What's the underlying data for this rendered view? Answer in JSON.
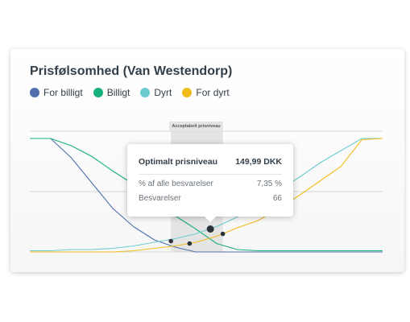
{
  "chart": {
    "title": "Prisfølsomhed (Van Westendorp)",
    "legend": [
      {
        "label": "For billigt",
        "color": "#4f6fae"
      },
      {
        "label": "Billigt",
        "color": "#18b07a"
      },
      {
        "label": "Dyrt",
        "color": "#6ccbd0"
      },
      {
        "label": "For dyrt",
        "color": "#f2bb1c"
      }
    ],
    "range_label": "Acceptabelt prisniveau"
  },
  "tooltip": {
    "heading_label": "Optimalt prisniveau",
    "heading_value": "149,99 DKK",
    "rows": [
      {
        "label": "% af alle besvarelser",
        "value": "7,35 %"
      },
      {
        "label": "Besvarelser",
        "value": "66"
      }
    ]
  },
  "chart_data": {
    "type": "line",
    "title": "Prisfølsomhed (Van Westendorp)",
    "xlabel": "",
    "ylabel": "",
    "x": [
      0,
      1,
      2,
      3,
      4,
      5,
      6,
      7,
      8,
      9,
      10,
      11,
      12,
      13,
      14,
      15,
      16,
      17
    ],
    "ylim": [
      0,
      100
    ],
    "grid": true,
    "legend_position": "top-left",
    "series": [
      {
        "name": "For billigt",
        "color": "#4f6fae",
        "values": [
          94,
          94,
          78,
          57,
          36,
          21,
          10,
          4,
          0,
          0,
          0,
          0,
          0,
          0,
          0,
          0,
          0,
          0
        ]
      },
      {
        "name": "Billigt",
        "color": "#18b07a",
        "values": [
          94,
          94,
          88,
          79,
          67,
          56,
          45,
          30,
          19,
          7,
          2,
          1,
          1,
          1,
          1,
          1,
          1,
          1
        ]
      },
      {
        "name": "Dyrt",
        "color": "#6ccbd0",
        "values": [
          1,
          1,
          2,
          2,
          3,
          5,
          8,
          11,
          15,
          21,
          29,
          39,
          51,
          62,
          74,
          84,
          94,
          94
        ]
      },
      {
        "name": "For dyrt",
        "color": "#f2bb1c",
        "values": [
          0,
          0,
          0,
          0,
          0,
          1,
          3,
          5,
          8,
          13,
          20,
          26,
          36,
          47,
          59,
          71,
          93,
          94
        ]
      }
    ],
    "intersections": [
      {
        "x": 6.8,
        "y": 9
      },
      {
        "x": 7.7,
        "y": 7
      },
      {
        "x": 8.7,
        "y": 19
      },
      {
        "x": 9.3,
        "y": 15
      }
    ],
    "optimal_point": {
      "x": 8.7,
      "y": 19
    },
    "acceptable_range": [
      6.8,
      9.3
    ]
  }
}
